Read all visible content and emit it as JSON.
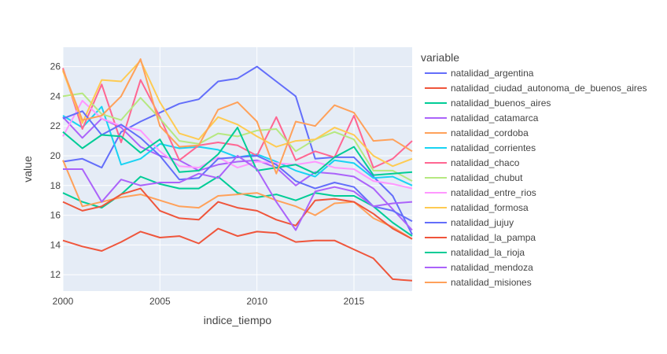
{
  "chart_data": {
    "type": "line",
    "xlabel": "indice_tiempo",
    "ylabel": "value",
    "legend_title": "variable",
    "legend_position": "right",
    "grid": true,
    "background": "#E5ECF6",
    "xlim": [
      2000,
      2018
    ],
    "ylim": [
      10.9,
      27.3
    ],
    "x_ticks": [
      2000,
      2005,
      2010,
      2015
    ],
    "y_ticks": [
      12,
      14,
      16,
      18,
      20,
      22,
      24,
      26
    ],
    "x": [
      2000,
      2001,
      2002,
      2003,
      2004,
      2005,
      2006,
      2007,
      2008,
      2009,
      2010,
      2011,
      2012,
      2013,
      2014,
      2015,
      2016,
      2017,
      2018
    ],
    "series": [
      {
        "name": "natalidad_argentina",
        "color": "#636EFA",
        "values": [
          19.6,
          19.8,
          19.2,
          21.6,
          22.3,
          22.9,
          23.5,
          23.8,
          25.0,
          25.2,
          26.0,
          25.0,
          24.0,
          19.8,
          19.9,
          19.9,
          18.6,
          17.3,
          14.7
        ]
      },
      {
        "name": "natalidad_ciudad_autonoma_de_buenos_aires",
        "color": "#EF553B",
        "values": [
          14.3,
          13.9,
          13.6,
          14.2,
          14.9,
          14.5,
          14.6,
          14.1,
          15.1,
          14.6,
          14.9,
          14.8,
          14.2,
          14.3,
          14.3,
          13.7,
          13.1,
          11.7,
          11.6
        ]
      },
      {
        "name": "natalidad_buenos_aires",
        "color": "#00CC96",
        "values": [
          17.5,
          16.9,
          16.5,
          17.4,
          18.6,
          18.1,
          17.8,
          17.8,
          18.6,
          17.5,
          17.2,
          17.4,
          17.0,
          17.5,
          17.3,
          17.3,
          16.6,
          15.5,
          14.6
        ]
      },
      {
        "name": "natalidad_catamarca",
        "color": "#AB63FA",
        "values": [
          22.6,
          21.2,
          22.5,
          21.9,
          20.6,
          20.0,
          19.7,
          19.0,
          19.4,
          19.6,
          19.7,
          19.2,
          18.0,
          18.9,
          18.8,
          18.6,
          17.8,
          16.4,
          15.0
        ]
      },
      {
        "name": "natalidad_cordoba",
        "color": "#FFA15A",
        "values": [
          19.7,
          16.6,
          16.9,
          17.2,
          17.4,
          17.0,
          16.6,
          16.5,
          17.3,
          17.4,
          17.5,
          17.0,
          16.6,
          16.0,
          16.8,
          16.9,
          15.8,
          15.2,
          14.4
        ]
      },
      {
        "name": "natalidad_corrientes",
        "color": "#19D3F3",
        "values": [
          22.7,
          21.9,
          23.3,
          19.4,
          19.8,
          20.8,
          20.5,
          20.6,
          20.4,
          19.9,
          20.1,
          19.6,
          19.0,
          18.6,
          19.7,
          19.5,
          18.5,
          18.6,
          18.0
        ]
      },
      {
        "name": "natalidad_chaco",
        "color": "#FF6692",
        "values": [
          25.9,
          21.8,
          24.8,
          20.9,
          25.1,
          22.6,
          19.7,
          20.7,
          20.9,
          20.7,
          20.0,
          22.6,
          19.7,
          20.3,
          19.9,
          22.7,
          19.2,
          19.8,
          21.0
        ]
      },
      {
        "name": "natalidad_chubut",
        "color": "#B6E880",
        "values": [
          24.0,
          24.2,
          22.8,
          22.4,
          23.9,
          22.5,
          21.0,
          20.8,
          21.5,
          21.3,
          21.7,
          21.8,
          20.3,
          21.1,
          21.6,
          21.1,
          19.0,
          19.0,
          18.3
        ]
      },
      {
        "name": "natalidad_entre_rios",
        "color": "#FF97FF",
        "values": [
          21.3,
          23.7,
          22.5,
          22.0,
          21.7,
          20.3,
          19.3,
          19.2,
          19.9,
          19.2,
          19.6,
          19.5,
          19.4,
          19.6,
          19.2,
          19.1,
          18.3,
          18.1,
          17.8
        ]
      },
      {
        "name": "natalidad_formosa",
        "color": "#FECB52",
        "values": [
          25.7,
          22.2,
          25.1,
          25.0,
          26.4,
          23.6,
          21.5,
          21.1,
          22.6,
          22.1,
          21.3,
          20.6,
          21.0,
          21.1,
          21.9,
          21.4,
          20.0,
          19.3,
          19.8
        ]
      },
      {
        "name": "natalidad_jujuy",
        "color": "#636EFA",
        "values": [
          22.5,
          23.0,
          21.4,
          22.1,
          21.2,
          20.0,
          18.4,
          18.5,
          19.8,
          19.9,
          20.0,
          19.4,
          18.3,
          17.8,
          18.2,
          17.9,
          16.6,
          16.3,
          15.6
        ]
      },
      {
        "name": "natalidad_la_pampa",
        "color": "#EF553B",
        "values": [
          16.9,
          16.3,
          16.6,
          17.4,
          17.8,
          16.3,
          15.8,
          15.7,
          16.9,
          16.5,
          16.3,
          15.7,
          15.3,
          17.0,
          17.1,
          16.9,
          16.1,
          15.1,
          14.4
        ]
      },
      {
        "name": "natalidad_la_rioja",
        "color": "#00CC96",
        "values": [
          21.6,
          20.5,
          21.4,
          21.3,
          20.2,
          21.1,
          18.9,
          19.0,
          20.1,
          21.9,
          19.0,
          19.2,
          19.4,
          18.8,
          19.9,
          20.6,
          18.7,
          18.8,
          18.9
        ]
      },
      {
        "name": "natalidad_mendoza",
        "color": "#AB63FA",
        "values": [
          19.1,
          19.1,
          16.9,
          18.4,
          18.0,
          18.2,
          18.2,
          18.8,
          18.5,
          20.0,
          19.1,
          16.9,
          15.0,
          17.6,
          17.9,
          17.6,
          16.6,
          16.8,
          16.9
        ]
      },
      {
        "name": "natalidad_misiones",
        "color": "#FFA15A",
        "values": [
          25.8,
          22.4,
          22.7,
          24.0,
          26.5,
          22.0,
          20.6,
          20.7,
          23.1,
          23.6,
          22.3,
          18.8,
          22.3,
          22.0,
          23.4,
          22.9,
          21.0,
          21.1,
          20.3
        ]
      }
    ]
  }
}
